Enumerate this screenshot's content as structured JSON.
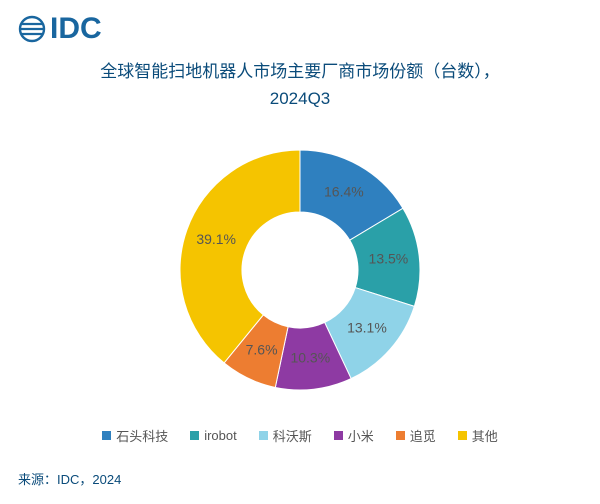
{
  "logo": {
    "text": "IDC",
    "color": "#19669f",
    "mark_color": "#19669f"
  },
  "chart": {
    "type": "donut",
    "title_line1": "全球智能扫地机器人市场主要厂商市场份额（台数），",
    "title_line2": "2024Q3",
    "title_color": "#0a4b7a",
    "title_fontsize": 17,
    "background_color": "#ffffff",
    "label_color": "#555555",
    "label_fontsize": 14,
    "inner_radius": 58,
    "outer_radius": 120,
    "start_angle_deg": 0,
    "segments": [
      {
        "name": "石头科技",
        "value": 16.4,
        "color": "#2f80bf",
        "label": "16.4%"
      },
      {
        "name": "irobot",
        "value": 13.5,
        "color": "#2aa0a8",
        "label": "13.5%"
      },
      {
        "name": "科沃斯",
        "value": 13.1,
        "color": "#8fd3e8",
        "label": "13.1%"
      },
      {
        "name": "小米",
        "value": 10.3,
        "color": "#8e3aa3",
        "label": "10.3%"
      },
      {
        "name": "追觅",
        "value": 7.6,
        "color": "#ed7d31",
        "label": "7.6%"
      },
      {
        "name": "其他",
        "value": 39.1,
        "color": "#f5c400",
        "label": "39.1%"
      }
    ]
  },
  "legend": {
    "items": [
      {
        "label": "石头科技",
        "color": "#2f80bf"
      },
      {
        "label": "irobot",
        "color": "#2aa0a8"
      },
      {
        "label": "科沃斯",
        "color": "#8fd3e8"
      },
      {
        "label": "小米",
        "color": "#8e3aa3"
      },
      {
        "label": "追觅",
        "color": "#ed7d31"
      },
      {
        "label": "其他",
        "color": "#f5c400"
      }
    ],
    "label_color": "#555555",
    "label_fontsize": 13,
    "swatch_size": 9
  },
  "source": {
    "text": "来源：IDC，2024",
    "color": "#0a4b7a",
    "fontsize": 13
  }
}
